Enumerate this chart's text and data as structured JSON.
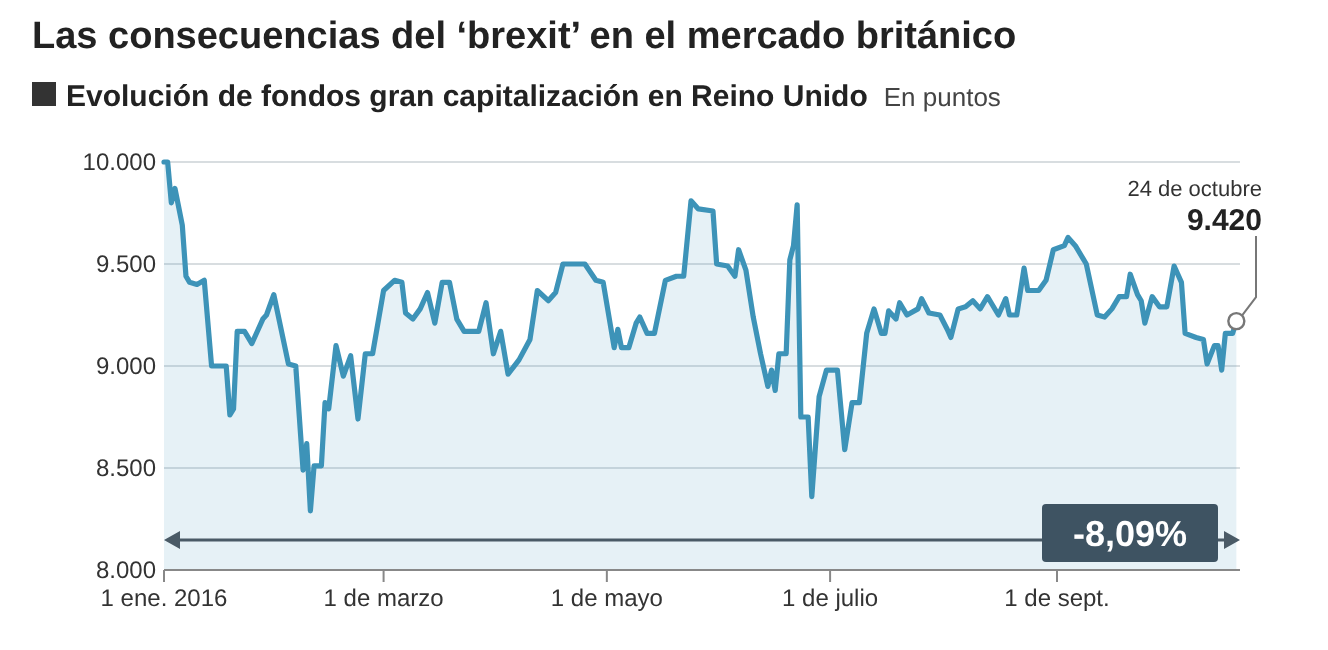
{
  "chart_data": {
    "type": "area",
    "title": "Las consecuencias del ‘brexit’ en el mercado británico",
    "subtitle": "Evolución de fondos gran capitalización en Reino Unido",
    "ylabel": "En puntos",
    "annotations": [
      "24 de octubre",
      "9.420",
      "-8,09%"
    ],
    "xlim": [
      "2016-01-01",
      "2016-10-21"
    ],
    "xticks": [
      {
        "value": "2016-01-01",
        "label": "1 ene. 2016"
      },
      {
        "value": "2016-03-01",
        "label": "1 de marzo"
      },
      {
        "value": "2016-05-01",
        "label": "1 de mayo"
      },
      {
        "value": "2016-07-01",
        "label": "1 de julio"
      },
      {
        "value": "2016-09-01",
        "label": "1 de sept."
      }
    ],
    "ylim": [
      8000,
      10000
    ],
    "yticks": [
      {
        "value": 8000,
        "label": "8.000"
      },
      {
        "value": 8500,
        "label": "8.500"
      },
      {
        "value": 9000,
        "label": "9.000"
      },
      {
        "value": 9500,
        "label": "9.500"
      },
      {
        "value": 10000,
        "label": "10.000"
      }
    ],
    "grid": "y",
    "line_style": "solid",
    "x": [
      "2016-01-01",
      "2016-01-02",
      "2016-01-03",
      "2016-01-04",
      "2016-01-05",
      "2016-01-06",
      "2016-01-07",
      "2016-01-08",
      "2016-01-10",
      "2016-01-12",
      "2016-01-14",
      "2016-01-16",
      "2016-01-18",
      "2016-01-19",
      "2016-01-20",
      "2016-01-21",
      "2016-01-23",
      "2016-01-25",
      "2016-01-28",
      "2016-01-29",
      "2016-01-31",
      "2016-02-04",
      "2016-02-06",
      "2016-02-08",
      "2016-02-09",
      "2016-02-10",
      "2016-02-11",
      "2016-02-13",
      "2016-02-14",
      "2016-02-15",
      "2016-02-17",
      "2016-02-19",
      "2016-02-21",
      "2016-02-23",
      "2016-02-25",
      "2016-02-27",
      "2016-03-01",
      "2016-03-04",
      "2016-03-06",
      "2016-03-07",
      "2016-03-09",
      "2016-03-11",
      "2016-03-13",
      "2016-03-15",
      "2016-03-17",
      "2016-03-19",
      "2016-03-21",
      "2016-03-23",
      "2016-03-27",
      "2016-03-29",
      "2016-03-31",
      "2016-04-02",
      "2016-04-04",
      "2016-04-07",
      "2016-04-10",
      "2016-04-12",
      "2016-04-15",
      "2016-04-17",
      "2016-04-19",
      "2016-04-21",
      "2016-04-25",
      "2016-04-28",
      "2016-04-30",
      "2016-05-03",
      "2016-05-04",
      "2016-05-05",
      "2016-05-07",
      "2016-05-09",
      "2016-05-10",
      "2016-05-12",
      "2016-05-14",
      "2016-05-17",
      "2016-05-20",
      "2016-05-22",
      "2016-05-24",
      "2016-05-26",
      "2016-05-30",
      "2016-05-31",
      "2016-06-03",
      "2016-06-05",
      "2016-06-06",
      "2016-06-08",
      "2016-06-10",
      "2016-06-12",
      "2016-06-14",
      "2016-06-15",
      "2016-06-16",
      "2016-06-17",
      "2016-06-19",
      "2016-06-20",
      "2016-06-21",
      "2016-06-22",
      "2016-06-23",
      "2016-06-25",
      "2016-06-26",
      "2016-06-28",
      "2016-06-30",
      "2016-07-03",
      "2016-07-05",
      "2016-07-07",
      "2016-07-09",
      "2016-07-11",
      "2016-07-13",
      "2016-07-15",
      "2016-07-16",
      "2016-07-17",
      "2016-07-19",
      "2016-07-20",
      "2016-07-22",
      "2016-07-25",
      "2016-07-26",
      "2016-07-28",
      "2016-07-31",
      "2016-08-02",
      "2016-08-03",
      "2016-08-05",
      "2016-08-07",
      "2016-08-09",
      "2016-08-11",
      "2016-08-13",
      "2016-08-14",
      "2016-08-16",
      "2016-08-18",
      "2016-08-19",
      "2016-08-21",
      "2016-08-23",
      "2016-08-24",
      "2016-08-27",
      "2016-08-29",
      "2016-08-31",
      "2016-09-03",
      "2016-09-04",
      "2016-09-06",
      "2016-09-08",
      "2016-09-09",
      "2016-09-12",
      "2016-09-14",
      "2016-09-16",
      "2016-09-18",
      "2016-09-20",
      "2016-09-21",
      "2016-09-23",
      "2016-09-24",
      "2016-09-25",
      "2016-09-27",
      "2016-09-29",
      "2016-10-01",
      "2016-10-03",
      "2016-10-05",
      "2016-10-06",
      "2016-10-09",
      "2016-10-11",
      "2016-10-12",
      "2016-10-14",
      "2016-10-15",
      "2016-10-16",
      "2016-10-17",
      "2016-10-19",
      "2016-10-20"
    ],
    "series": [
      {
        "color": "#3d93b8",
        "values": [
          10000,
          10000,
          9800,
          9870,
          9780,
          9690,
          9440,
          9410,
          9400,
          9420,
          9000,
          9000,
          9000,
          8760,
          8790,
          9170,
          9170,
          9110,
          9230,
          9250,
          9350,
          9010,
          9000,
          8490,
          8620,
          8290,
          8510,
          8510,
          8820,
          8790,
          9100,
          8950,
          9050,
          8740,
          9060,
          9060,
          9370,
          9420,
          9410,
          9260,
          9230,
          9280,
          9360,
          9210,
          9410,
          9410,
          9230,
          9170,
          9170,
          9310,
          9060,
          9170,
          8960,
          9030,
          9130,
          9370,
          9320,
          9360,
          9500,
          9500,
          9500,
          9420,
          9410,
          9090,
          9180,
          9090,
          9090,
          9210,
          9240,
          9160,
          9160,
          9420,
          9440,
          9440,
          9810,
          9770,
          9760,
          9500,
          9490,
          9440,
          9570,
          9470,
          9240,
          9060,
          8900,
          8980,
          8880,
          9060,
          9060,
          9520,
          9590,
          9790,
          8750,
          8750,
          8360,
          8850,
          8980,
          8980,
          8590,
          8820,
          8820,
          9160,
          9280,
          9160,
          9160,
          9270,
          9230,
          9310,
          9250,
          9280,
          9330,
          9260,
          9250,
          9180,
          9140,
          9280,
          9290,
          9320,
          9280,
          9340,
          9310,
          9250,
          9330,
          9250,
          9250,
          9480,
          9370,
          9370,
          9420,
          9570,
          9590,
          9630,
          9590,
          9530,
          9500,
          9250,
          9240,
          9280,
          9340,
          9340,
          9450,
          9350,
          9320,
          9210,
          9340,
          9290,
          9290,
          9490,
          9410,
          9160,
          9140,
          9130,
          9010,
          9100,
          9100,
          8980,
          9160,
          9160,
          9220
        ]
      }
    ]
  }
}
